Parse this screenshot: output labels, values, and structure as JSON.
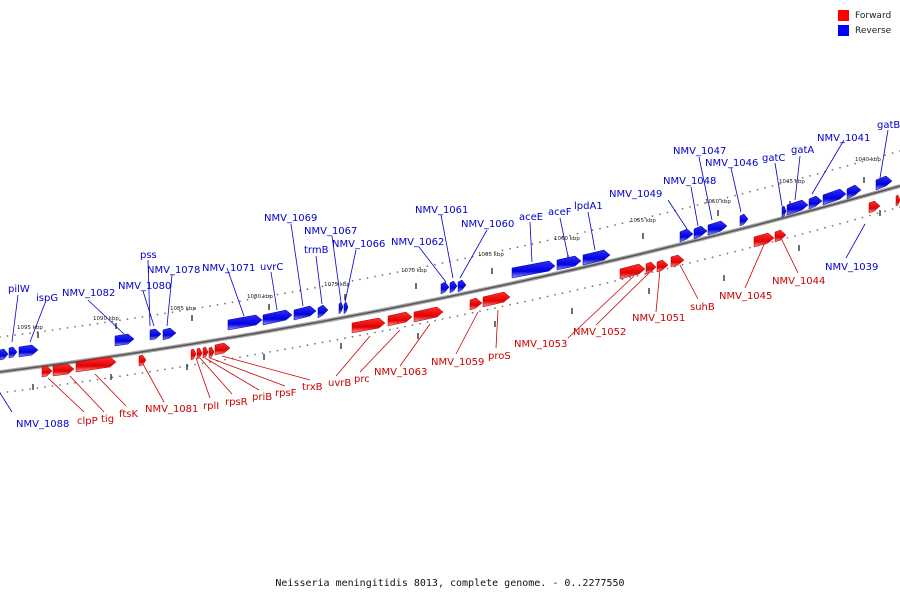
{
  "legend": {
    "forward_label": "Forward",
    "reverse_label": "Reverse",
    "forward_color": "#ff0000",
    "reverse_color": "#0000ff"
  },
  "caption": "Neisseria meningitidis 8013, complete genome. - 0..2277550",
  "ticks": [
    "1095 kbp",
    "1090 kbp",
    "1085 kbp",
    "1080 kbp",
    "1075 kbp",
    "1070 kbp",
    "1065 kbp",
    "1060 kbp",
    "1055 kbp",
    "1050 kbp",
    "1045 kbp",
    "1040 kbp"
  ],
  "reverse_labels": [
    "pilW",
    "ispG",
    "NMV_1082",
    "NMV_1080",
    "pss",
    "NMV_1078",
    "NMV_1071",
    "uvrC",
    "NMV_1069",
    "trmB",
    "NMV_1067",
    "NMV_1066",
    "NMV_1062",
    "NMV_1061",
    "NMV_1060",
    "aceE",
    "aceF",
    "lpdA1",
    "NMV_1049",
    "NMV_1048",
    "NMV_1047",
    "NMV_1046",
    "gatC",
    "gatA",
    "NMV_1041",
    "gatB",
    "NMV_1088",
    "NMV_1039"
  ],
  "forward_labels": [
    "clpP",
    "tig",
    "ftsK",
    "NMV_1081",
    "rplI",
    "rpsR",
    "priB",
    "rpsF",
    "trxB",
    "uvrB",
    "prc",
    "NMV_1063",
    "NMV_1059",
    "proS",
    "NMV_1053",
    "NMV_1052",
    "NMV_1051",
    "suhB",
    "NMV_1045",
    "NMV_1044"
  ]
}
